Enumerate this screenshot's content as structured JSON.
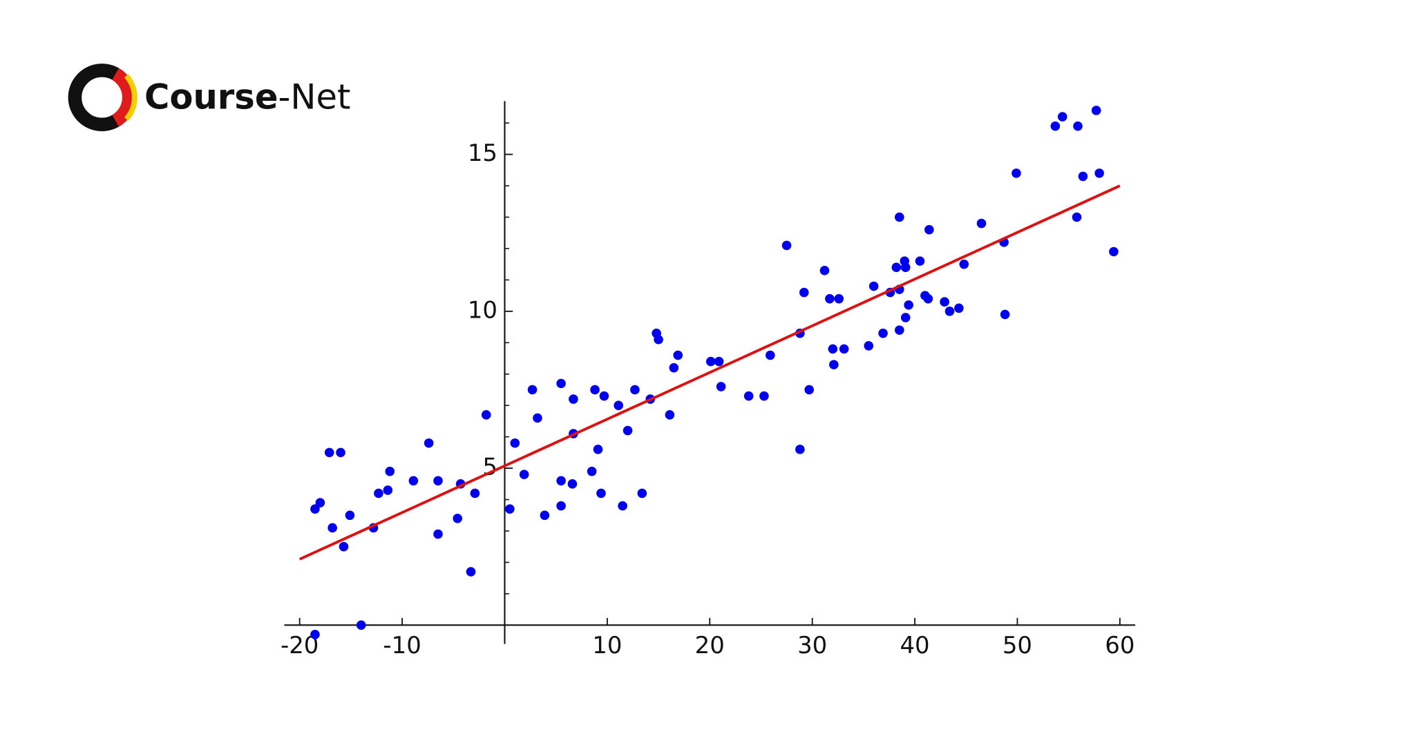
{
  "logo": {
    "bold": "Course",
    "rest": "-Net"
  },
  "chart_data": {
    "type": "scatter",
    "x": [
      -18.5,
      -18.0,
      -17.1,
      -16.0,
      -16.8,
      -15.7,
      -15.1,
      -18.5,
      -14.0,
      -12.8,
      -12.3,
      -11.4,
      -11.2,
      -8.9,
      -7.4,
      -6.5,
      -6.5,
      -4.6,
      -4.3,
      -3.3,
      -2.9,
      -1.8,
      0.5,
      1.0,
      1.9,
      2.7,
      3.2,
      3.9,
      5.5,
      5.5,
      5.5,
      6.7,
      6.7,
      6.6,
      8.8,
      8.5,
      9.1,
      9.7,
      9.4,
      11.1,
      11.5,
      12.0,
      12.7,
      13.4,
      14.2,
      14.8,
      15.0,
      16.1,
      16.5,
      16.9,
      20.1,
      20.9,
      21.1,
      23.8,
      25.3,
      25.9,
      27.5,
      28.8,
      28.8,
      29.2,
      29.7,
      31.2,
      31.7,
      32.0,
      32.1,
      32.6,
      33.1,
      35.5,
      36.0,
      36.9,
      37.6,
      38.2,
      38.5,
      38.5,
      39.0,
      39.1,
      38.5,
      39.1,
      39.4,
      40.5,
      41.0,
      41.4,
      41.3,
      42.9,
      43.4,
      44.3,
      44.8,
      46.5,
      48.7,
      48.8,
      49.9,
      53.7,
      54.4,
      55.9,
      57.7,
      55.8,
      56.4,
      58.0,
      59.4
    ],
    "values": [
      3.7,
      3.9,
      5.5,
      5.5,
      3.1,
      2.5,
      3.5,
      -0.3,
      0.0,
      3.1,
      4.2,
      4.3,
      4.9,
      4.6,
      5.8,
      4.6,
      2.9,
      3.4,
      4.5,
      1.7,
      4.2,
      6.7,
      3.7,
      5.8,
      4.8,
      7.5,
      6.6,
      3.5,
      7.7,
      4.6,
      3.8,
      7.2,
      6.1,
      4.5,
      7.5,
      4.9,
      5.6,
      7.3,
      4.2,
      7.0,
      3.8,
      6.2,
      7.5,
      4.2,
      7.2,
      9.3,
      9.1,
      6.7,
      8.2,
      8.6,
      8.4,
      8.4,
      7.6,
      7.3,
      7.3,
      8.6,
      12.1,
      9.3,
      5.6,
      10.6,
      7.5,
      11.3,
      10.4,
      8.8,
      8.3,
      10.4,
      8.8,
      8.9,
      10.8,
      9.3,
      10.6,
      11.4,
      13.0,
      10.7,
      11.6,
      11.4,
      9.4,
      9.8,
      10.2,
      11.6,
      10.5,
      12.6,
      10.4,
      10.3,
      10.0,
      10.1,
      11.5,
      12.8,
      12.2,
      9.9,
      14.4,
      15.9,
      16.2,
      15.9,
      16.4,
      13.0,
      14.3,
      14.4,
      11.9
    ],
    "color": "#0000ee",
    "fit": {
      "type": "line",
      "x": [
        -20,
        60
      ],
      "values": [
        2.1,
        14.0
      ],
      "color": "#dd1111"
    },
    "xlim": [
      -21.5,
      61.5
    ],
    "ylim": [
      -0.6,
      16.7
    ],
    "xticks": [
      -20,
      -10,
      10,
      20,
      30,
      40,
      50,
      60
    ],
    "yticks": [
      5,
      10,
      15
    ],
    "yminorticks": [
      1,
      2,
      3,
      4,
      6,
      7,
      8,
      9,
      11,
      12,
      13,
      14,
      16
    ]
  }
}
